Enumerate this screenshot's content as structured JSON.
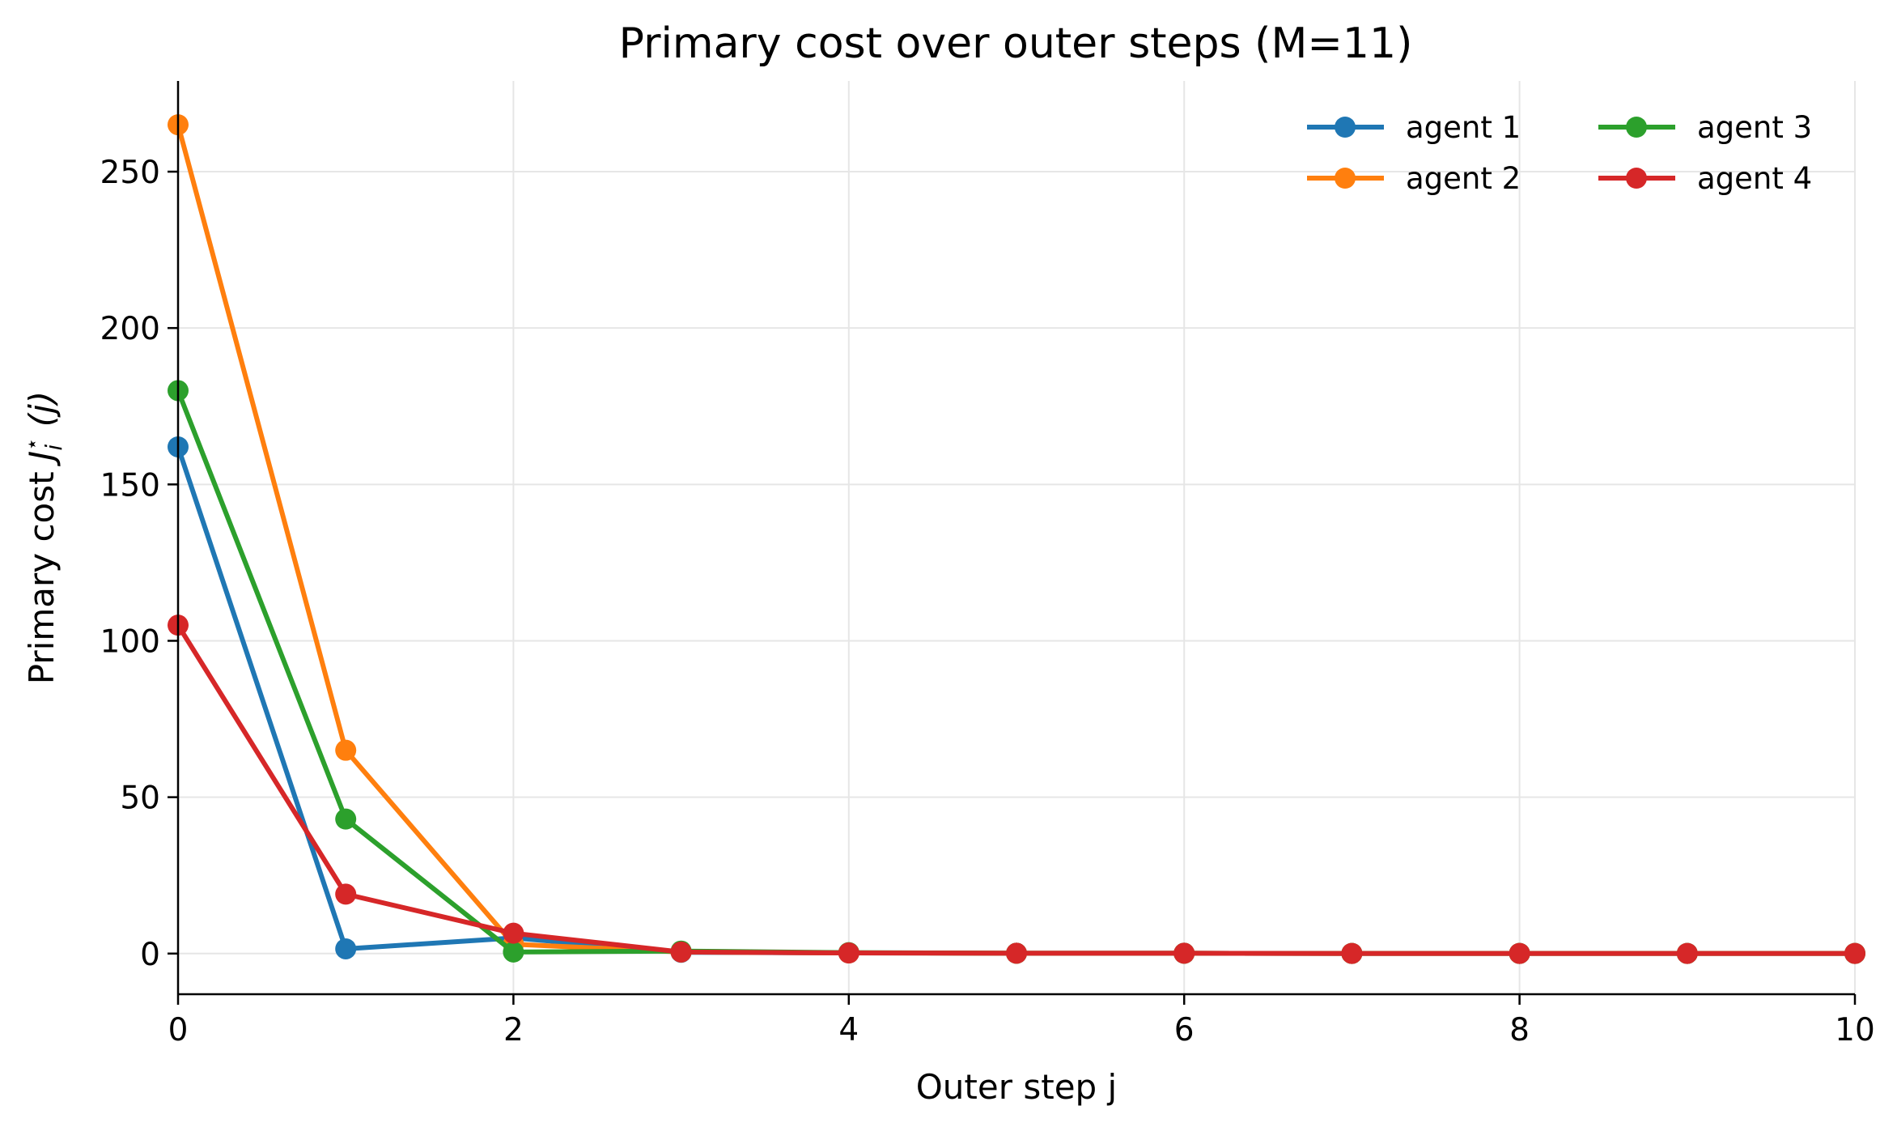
{
  "chart_data": {
    "type": "line",
    "title": "Primary cost over outer steps (M=11)",
    "xlabel": "Outer step j",
    "ylabel_prefix": "Primary cost ",
    "ylabel_math": "J",
    "ylabel_sub": "i",
    "ylabel_sup": "⋆",
    "ylabel_suffix": " (j)",
    "xlim": [
      0,
      10
    ],
    "ylim": [
      -13,
      279
    ],
    "xticks": [
      0,
      2,
      4,
      6,
      8,
      10
    ],
    "yticks": [
      0,
      50,
      100,
      150,
      200,
      250
    ],
    "grid": true,
    "legend_position": "top-right",
    "x": [
      0,
      1,
      2,
      3,
      4,
      5,
      6,
      7,
      8,
      9,
      10
    ],
    "series": [
      {
        "name": "agent 1",
        "color": "#1f77b4",
        "values": [
          162,
          1.5,
          5,
          0.4,
          0.2,
          0.1,
          0.1,
          0.05,
          0.05,
          0.05,
          0.05
        ]
      },
      {
        "name": "agent 2",
        "color": "#ff7f0e",
        "values": [
          265,
          65,
          3,
          0.5,
          0.2,
          0.1,
          0.1,
          0.05,
          0.05,
          0.05,
          0.05
        ]
      },
      {
        "name": "agent 3",
        "color": "#2ca02c",
        "values": [
          180,
          43,
          0.5,
          0.8,
          0.3,
          0.1,
          0.1,
          0.05,
          0.05,
          0.05,
          0.05
        ]
      },
      {
        "name": "agent 4",
        "color": "#d62728",
        "values": [
          105,
          19,
          6.5,
          0.5,
          0.2,
          0.1,
          0.1,
          0.05,
          0.05,
          0.05,
          0.05
        ]
      }
    ]
  }
}
